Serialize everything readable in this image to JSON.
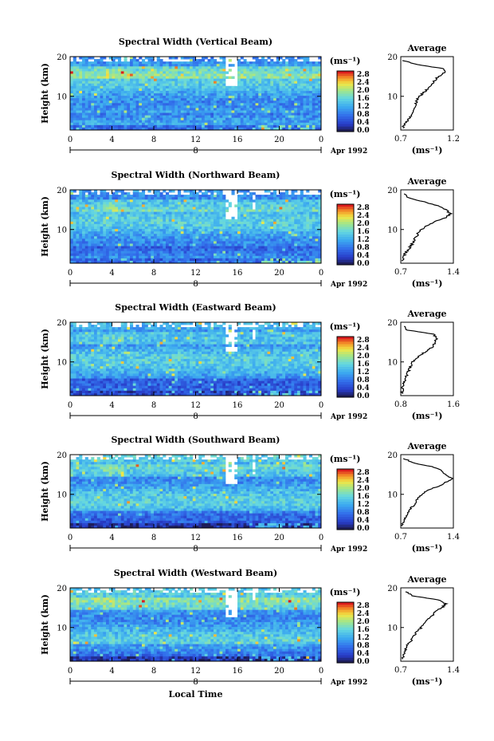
{
  "chart_data": [
    {
      "type": "heatmap",
      "title": "Spectral Width (Vertical Beam)",
      "ylabel": "Height (km)",
      "unit_label": "(ms⁻¹)",
      "x_ticks": [
        "0",
        "4",
        "8",
        "12",
        "16",
        "20",
        "0"
      ],
      "y_ticks": [
        "20",
        "10"
      ],
      "xlim": [
        0,
        24
      ],
      "ylim": [
        1.5,
        20
      ],
      "date_day": "8",
      "date_label": "Apr 1992",
      "colorbar_ticks": [
        "2.8",
        "2.4",
        "2.0",
        "1.6",
        "1.2",
        "0.8",
        "0.4",
        "0.0"
      ],
      "average": {
        "title": "Average",
        "x_ticks": [
          "0.7",
          "1.2"
        ],
        "xlim": [
          0.7,
          1.2
        ],
        "xlabel": "(ms⁻¹)",
        "profile": [
          [
            19,
            0.72
          ],
          [
            18,
            0.85
          ],
          [
            17,
            1.1
          ],
          [
            16,
            1.12
          ],
          [
            15,
            1.06
          ],
          [
            14,
            1.02
          ],
          [
            13,
            1.0
          ],
          [
            12,
            0.96
          ],
          [
            11,
            0.92
          ],
          [
            10,
            0.88
          ],
          [
            9,
            0.85
          ],
          [
            8,
            0.84
          ],
          [
            7,
            0.83
          ],
          [
            6,
            0.82
          ],
          [
            5,
            0.8
          ],
          [
            4,
            0.77
          ],
          [
            3,
            0.74
          ],
          [
            2,
            0.72
          ]
        ]
      }
    },
    {
      "type": "heatmap",
      "title": "Spectral Width (Northward Beam)",
      "ylabel": "Height (km)",
      "unit_label": "(ms⁻¹)",
      "x_ticks": [
        "0",
        "4",
        "8",
        "12",
        "16",
        "20",
        "0"
      ],
      "y_ticks": [
        "20",
        "10"
      ],
      "xlim": [
        0,
        24
      ],
      "ylim": [
        1.5,
        20
      ],
      "date_day": "8",
      "date_label": "Apr 1992",
      "colorbar_ticks": [
        "2.8",
        "2.4",
        "2.0",
        "1.6",
        "1.2",
        "0.8",
        "0.4",
        "0.0"
      ],
      "average": {
        "title": "Average",
        "x_ticks": [
          "0.7",
          "1.4"
        ],
        "xlim": [
          0.7,
          1.4
        ],
        "xlabel": "(ms⁻¹)",
        "profile": [
          [
            19,
            0.75
          ],
          [
            18,
            0.8
          ],
          [
            17,
            1.0
          ],
          [
            16,
            1.2
          ],
          [
            15,
            1.3
          ],
          [
            14,
            1.36
          ],
          [
            13,
            1.3
          ],
          [
            12,
            1.15
          ],
          [
            11,
            1.05
          ],
          [
            10,
            0.98
          ],
          [
            9,
            0.93
          ],
          [
            8,
            0.9
          ],
          [
            7,
            0.87
          ],
          [
            6,
            0.84
          ],
          [
            5,
            0.8
          ],
          [
            4,
            0.76
          ],
          [
            3,
            0.74
          ],
          [
            2,
            0.72
          ]
        ]
      }
    },
    {
      "type": "heatmap",
      "title": "Spectral Width (Eastward Beam)",
      "ylabel": "Height (km)",
      "unit_label": "(ms⁻¹)",
      "x_ticks": [
        "0",
        "4",
        "8",
        "12",
        "16",
        "20",
        "0"
      ],
      "y_ticks": [
        "20",
        "10"
      ],
      "xlim": [
        0,
        24
      ],
      "ylim": [
        1.5,
        20
      ],
      "date_day": "8",
      "date_label": "Apr 1992",
      "colorbar_ticks": [
        "2.8",
        "2.4",
        "2.0",
        "1.6",
        "1.2",
        "0.8",
        "0.4",
        "0.0"
      ],
      "average": {
        "title": "Average",
        "x_ticks": [
          "0.8",
          "1.6"
        ],
        "xlim": [
          0.8,
          1.6
        ],
        "xlabel": "(ms⁻¹)",
        "profile": [
          [
            19,
            0.85
          ],
          [
            18,
            0.9
          ],
          [
            17,
            1.3
          ],
          [
            16,
            1.35
          ],
          [
            15,
            1.32
          ],
          [
            14,
            1.3
          ],
          [
            13,
            1.22
          ],
          [
            12,
            1.12
          ],
          [
            11,
            1.04
          ],
          [
            10,
            0.98
          ],
          [
            9,
            0.95
          ],
          [
            8,
            0.93
          ],
          [
            7,
            0.9
          ],
          [
            6,
            0.88
          ],
          [
            5,
            0.85
          ],
          [
            4,
            0.84
          ],
          [
            3,
            0.83
          ],
          [
            2,
            0.82
          ]
        ]
      }
    },
    {
      "type": "heatmap",
      "title": "Spectral Width (Southward Beam)",
      "ylabel": "Height (km)",
      "unit_label": "(ms⁻¹)",
      "x_ticks": [
        "0",
        "4",
        "8",
        "12",
        "16",
        "20",
        "0"
      ],
      "y_ticks": [
        "20",
        "10"
      ],
      "xlim": [
        0,
        24
      ],
      "ylim": [
        1.5,
        20
      ],
      "date_day": "8",
      "date_label": "Apr 1992",
      "colorbar_ticks": [
        "2.8",
        "2.4",
        "2.0",
        "1.6",
        "1.2",
        "0.8",
        "0.4",
        "0.0"
      ],
      "average": {
        "title": "Average",
        "x_ticks": [
          "0.7",
          "1.4"
        ],
        "xlim": [
          0.7,
          1.4
        ],
        "xlabel": "(ms⁻¹)",
        "profile": [
          [
            19,
            0.75
          ],
          [
            18,
            0.85
          ],
          [
            17,
            1.1
          ],
          [
            16,
            1.25
          ],
          [
            15,
            1.3
          ],
          [
            14,
            1.38
          ],
          [
            13,
            1.3
          ],
          [
            12,
            1.2
          ],
          [
            11,
            1.05
          ],
          [
            10,
            0.98
          ],
          [
            9,
            0.93
          ],
          [
            8,
            0.9
          ],
          [
            7,
            0.86
          ],
          [
            6,
            0.82
          ],
          [
            5,
            0.78
          ],
          [
            4,
            0.75
          ],
          [
            3,
            0.74
          ],
          [
            2,
            0.72
          ]
        ]
      }
    },
    {
      "type": "heatmap",
      "title": "Spectral Width (Westward Beam)",
      "ylabel": "Height (km)",
      "unit_label": "(ms⁻¹)",
      "x_ticks": [
        "0",
        "4",
        "8",
        "12",
        "16",
        "20",
        "0"
      ],
      "y_ticks": [
        "20",
        "10"
      ],
      "xlim": [
        0,
        24
      ],
      "ylim": [
        1.5,
        20
      ],
      "date_day": "8",
      "date_label": "Apr 1992",
      "colorbar_ticks": [
        "2.8",
        "2.4",
        "2.0",
        "1.6",
        "1.2",
        "0.8",
        "0.4",
        "0.0"
      ],
      "xlabel": "Local Time",
      "average": {
        "title": "Average",
        "x_ticks": [
          "0.7",
          "1.4"
        ],
        "xlim": [
          0.7,
          1.4
        ],
        "xlabel": "(ms⁻¹)",
        "profile": [
          [
            19,
            0.78
          ],
          [
            18,
            0.85
          ],
          [
            17,
            1.2
          ],
          [
            16,
            1.3
          ],
          [
            15,
            1.25
          ],
          [
            14,
            1.15
          ],
          [
            13,
            1.12
          ],
          [
            12,
            1.05
          ],
          [
            11,
            1.0
          ],
          [
            10,
            0.97
          ],
          [
            9,
            0.92
          ],
          [
            8,
            0.88
          ],
          [
            7,
            0.85
          ],
          [
            6,
            0.8
          ],
          [
            5,
            0.77
          ],
          [
            4,
            0.75
          ],
          [
            3,
            0.73
          ],
          [
            2,
            0.72
          ]
        ]
      }
    }
  ]
}
